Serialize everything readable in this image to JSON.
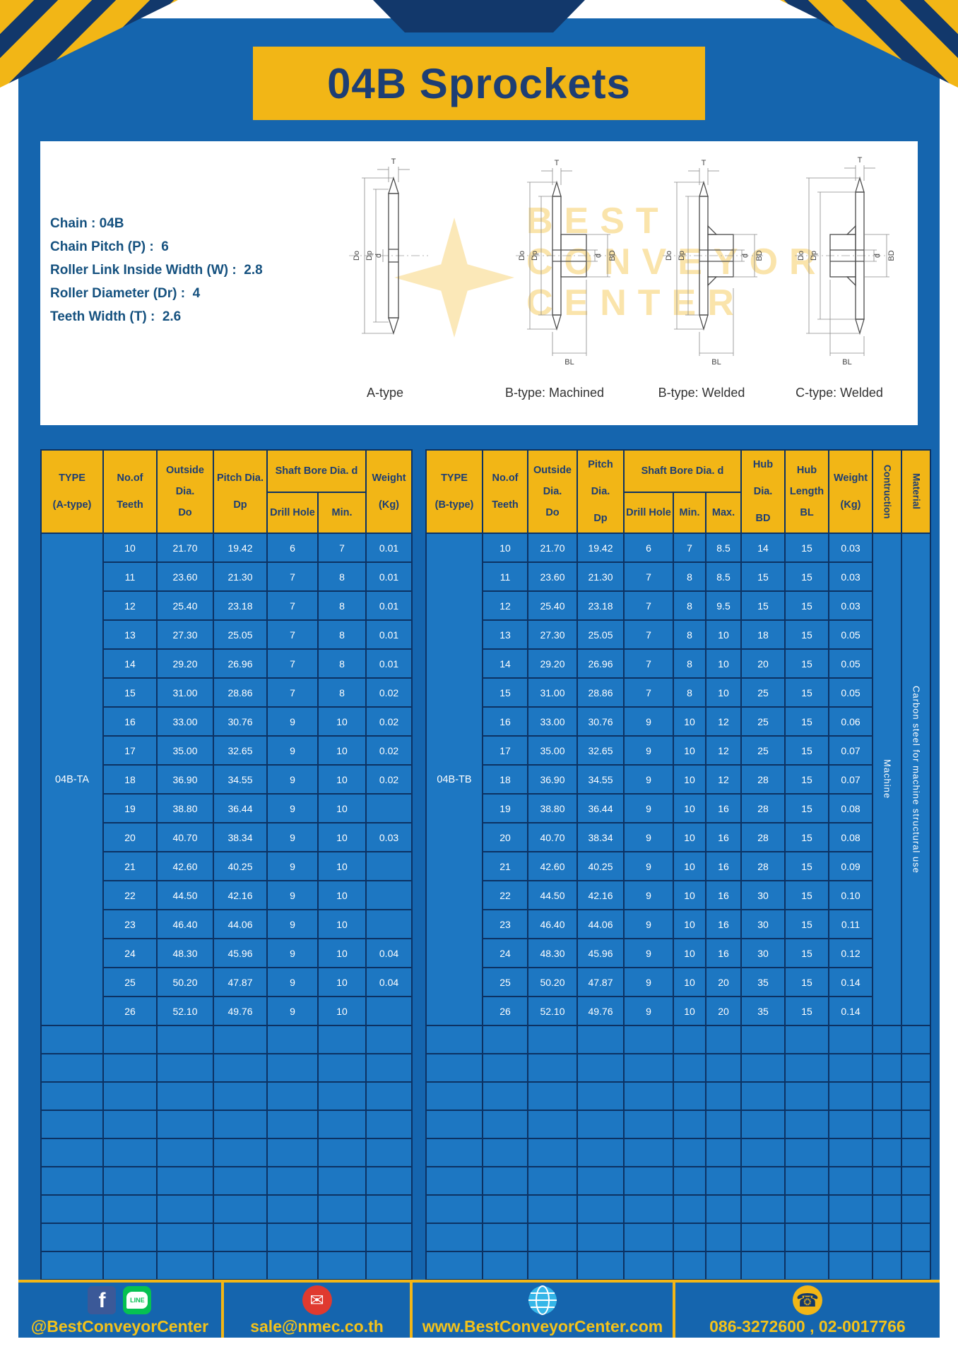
{
  "page": {
    "title": "04B Sprockets"
  },
  "colors": {
    "accent_yellow": "#f2b616",
    "page_blue": "#1565ae",
    "cell_blue": "#1d77c2",
    "navy": "#12386b",
    "header_text_navy": "#1d3e74"
  },
  "specs": {
    "lines": [
      "Chain : 04B",
      "Chain Pitch (P) :  6",
      "Roller Link Inside Width (W) :  2.8",
      "Roller Diameter (Dr) :  4",
      "Teeth Width (T) :  2.6"
    ]
  },
  "diagram": {
    "labels": [
      "A-type",
      "B-type: Machined",
      "B-type: Welded",
      "C-type: Welded"
    ],
    "dims": {
      "t": "T",
      "do": "Do",
      "dp": "Dp",
      "d": "d",
      "bd": "BD",
      "bl": "BL"
    },
    "watermark": "BEST\nCONVEYOR\nCENTER"
  },
  "table_a": {
    "headers": {
      "type": "TYPE\n(A-type)",
      "teeth": "No.of\nTeeth",
      "outside": "Outside\nDia.\nDo",
      "pitch": "Pitch Dia.\nDp",
      "shaft": "Shaft Bore Dia. d",
      "drill": "Drill Hole",
      "min": "Min.",
      "weight": "Weight\n(Kg)"
    },
    "type_label": "04B-TA",
    "empty_row_count": 9,
    "rows": [
      [
        "10",
        "21.70",
        "19.42",
        "6",
        "7",
        "0.01"
      ],
      [
        "11",
        "23.60",
        "21.30",
        "7",
        "8",
        "0.01"
      ],
      [
        "12",
        "25.40",
        "23.18",
        "7",
        "8",
        "0.01"
      ],
      [
        "13",
        "27.30",
        "25.05",
        "7",
        "8",
        "0.01"
      ],
      [
        "14",
        "29.20",
        "26.96",
        "7",
        "8",
        "0.01"
      ],
      [
        "15",
        "31.00",
        "28.86",
        "7",
        "8",
        "0.02"
      ],
      [
        "16",
        "33.00",
        "30.76",
        "9",
        "10",
        "0.02"
      ],
      [
        "17",
        "35.00",
        "32.65",
        "9",
        "10",
        "0.02"
      ],
      [
        "18",
        "36.90",
        "34.55",
        "9",
        "10",
        "0.02"
      ],
      [
        "19",
        "38.80",
        "36.44",
        "9",
        "10",
        ""
      ],
      [
        "20",
        "40.70",
        "38.34",
        "9",
        "10",
        "0.03"
      ],
      [
        "21",
        "42.60",
        "40.25",
        "9",
        "10",
        ""
      ],
      [
        "22",
        "44.50",
        "42.16",
        "9",
        "10",
        ""
      ],
      [
        "23",
        "46.40",
        "44.06",
        "9",
        "10",
        ""
      ],
      [
        "24",
        "48.30",
        "45.96",
        "9",
        "10",
        "0.04"
      ],
      [
        "25",
        "50.20",
        "47.87",
        "9",
        "10",
        "0.04"
      ],
      [
        "26",
        "52.10",
        "49.76",
        "9",
        "10",
        ""
      ]
    ]
  },
  "table_b": {
    "headers": {
      "type": "TYPE\n(B-type)",
      "teeth": "No.of\nTeeth",
      "outside": "Outside\nDia.\nDo",
      "pitch": "Pitch Dia.\nDp",
      "shaft": "Shaft Bore Dia. d",
      "drill": "Drill Hole",
      "min": "Min.",
      "max": "Max.",
      "hub_dia": "Hub Dia.\nBD",
      "hub_len": "Hub\nLength\nBL",
      "weight": "Weight\n(Kg)",
      "construction": "Contruction",
      "material": "Material"
    },
    "type_label": "04B-TB",
    "construction_value": "Machine",
    "material_value": "Carbon steel for machine structural use",
    "empty_row_count": 9,
    "rows": [
      [
        "10",
        "21.70",
        "19.42",
        "6",
        "7",
        "8.5",
        "14",
        "15",
        "0.03"
      ],
      [
        "11",
        "23.60",
        "21.30",
        "7",
        "8",
        "8.5",
        "15",
        "15",
        "0.03"
      ],
      [
        "12",
        "25.40",
        "23.18",
        "7",
        "8",
        "9.5",
        "15",
        "15",
        "0.03"
      ],
      [
        "13",
        "27.30",
        "25.05",
        "7",
        "8",
        "10",
        "18",
        "15",
        "0.05"
      ],
      [
        "14",
        "29.20",
        "26.96",
        "7",
        "8",
        "10",
        "20",
        "15",
        "0.05"
      ],
      [
        "15",
        "31.00",
        "28.86",
        "7",
        "8",
        "10",
        "25",
        "15",
        "0.05"
      ],
      [
        "16",
        "33.00",
        "30.76",
        "9",
        "10",
        "12",
        "25",
        "15",
        "0.06"
      ],
      [
        "17",
        "35.00",
        "32.65",
        "9",
        "10",
        "12",
        "25",
        "15",
        "0.07"
      ],
      [
        "18",
        "36.90",
        "34.55",
        "9",
        "10",
        "12",
        "28",
        "15",
        "0.07"
      ],
      [
        "19",
        "38.80",
        "36.44",
        "9",
        "10",
        "16",
        "28",
        "15",
        "0.08"
      ],
      [
        "20",
        "40.70",
        "38.34",
        "9",
        "10",
        "16",
        "28",
        "15",
        "0.08"
      ],
      [
        "21",
        "42.60",
        "40.25",
        "9",
        "10",
        "16",
        "28",
        "15",
        "0.09"
      ],
      [
        "22",
        "44.50",
        "42.16",
        "9",
        "10",
        "16",
        "30",
        "15",
        "0.10"
      ],
      [
        "23",
        "46.40",
        "44.06",
        "9",
        "10",
        "16",
        "30",
        "15",
        "0.11"
      ],
      [
        "24",
        "48.30",
        "45.96",
        "9",
        "10",
        "16",
        "30",
        "15",
        "0.12"
      ],
      [
        "25",
        "50.20",
        "47.87",
        "9",
        "10",
        "20",
        "35",
        "15",
        "0.14"
      ],
      [
        "26",
        "52.10",
        "49.76",
        "9",
        "10",
        "20",
        "35",
        "15",
        "0.14"
      ]
    ]
  },
  "footer": {
    "facebook_letter": "f",
    "line_badge": "LINE",
    "mail_glyph": "✉",
    "phone_glyph": "☎",
    "sections": [
      {
        "label": "@BestConveyorCenter"
      },
      {
        "label": "sale@nmec.co.th"
      },
      {
        "label": "www.BestConveyorCenter.com"
      },
      {
        "label": "086-3272600 , 02-0017766"
      }
    ]
  }
}
